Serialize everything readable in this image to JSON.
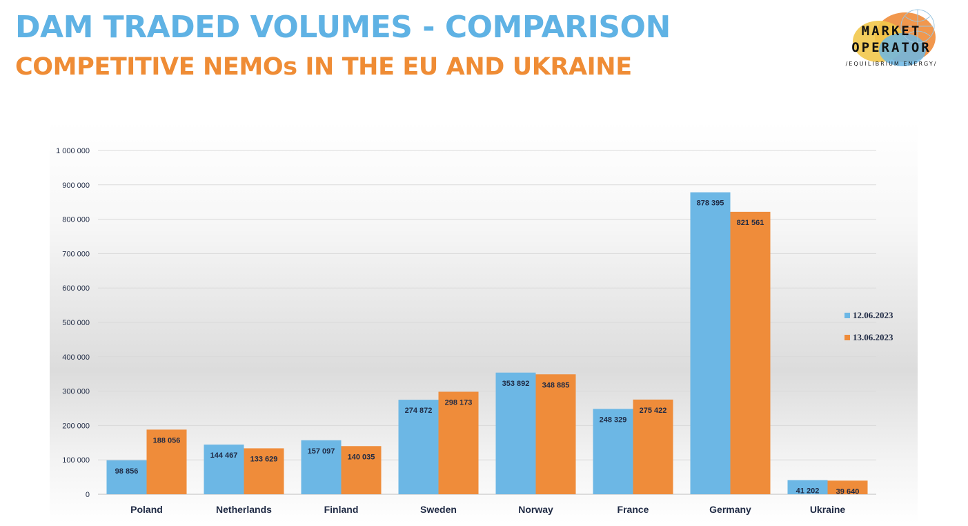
{
  "header": {
    "title": "DAM TRADED VOLUMES - COMPARISON",
    "subtitle": "COMPETITIVE NEMOs IN THE EU AND UKRAINE"
  },
  "logo": {
    "line1": "MARKET",
    "line2": "OPERATOR",
    "tagline": "/EQUILIBRIUM ENERGY/"
  },
  "colors": {
    "title": "#5fb2e4",
    "subtitle": "#ef8c35",
    "series1": "#6cb7e5",
    "series2": "#ef8c3a",
    "axis_text": "#1f2a44"
  },
  "chart_data": {
    "type": "bar",
    "categories": [
      "Poland",
      "Netherlands",
      "Finland",
      "Sweden",
      "Norway",
      "France",
      "Germany",
      "Ukraine"
    ],
    "series": [
      {
        "name": "12.06.2023",
        "values": [
          98856,
          144467,
          157097,
          274872,
          353892,
          248329,
          878395,
          41202
        ],
        "labels": [
          "98 856",
          "144 467",
          "157 097",
          "274 872",
          "353 892",
          "248 329",
          "878 395",
          "41 202"
        ]
      },
      {
        "name": "13.06.2023",
        "values": [
          188056,
          133629,
          140035,
          298173,
          348885,
          275422,
          821561,
          39640
        ],
        "labels": [
          "188 056",
          "133 629",
          "140 035",
          "298 173",
          "348 885",
          "275 422",
          "821 561",
          "39 640"
        ]
      }
    ],
    "yticks": [
      0,
      100000,
      200000,
      300000,
      400000,
      500000,
      600000,
      700000,
      800000,
      900000,
      1000000
    ],
    "ytick_labels": [
      "0",
      "100 000",
      "200 000",
      "300 000",
      "400 000",
      "500 000",
      "600 000",
      "700 000",
      "800 000",
      "900 000",
      "1 000 000"
    ],
    "ylim": [
      0,
      1000000
    ],
    "grid": true,
    "legend_position": "right",
    "title": "",
    "xlabel": "",
    "ylabel": ""
  }
}
